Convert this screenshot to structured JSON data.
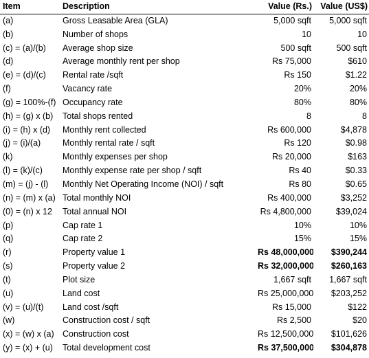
{
  "headers": {
    "item": "Item",
    "description": "Description",
    "value_rs": "Value (Rs.)",
    "value_usd": "Value (US$)"
  },
  "rows": [
    {
      "item": "(a)",
      "description": "Gross Leasable Area (GLA)",
      "rs": "5,000 sqft",
      "usd": "5,000 sqft",
      "bold": false
    },
    {
      "item": "(b)",
      "description": "Number of shops",
      "rs": "10",
      "usd": "10",
      "bold": false
    },
    {
      "item": "(c) = (a)/(b)",
      "description": "Average shop size",
      "rs": "500 sqft",
      "usd": "500 sqft",
      "bold": false
    },
    {
      "item": "(d)",
      "description": "Average monthly rent per shop",
      "rs": "Rs 75,000",
      "usd": "$610",
      "bold": false
    },
    {
      "item": "(e) = (d)/(c)",
      "description": "Rental rate /sqft",
      "rs": "Rs 150",
      "usd": "$1.22",
      "bold": false
    },
    {
      "item": "(f)",
      "description": "Vacancy rate",
      "rs": "20%",
      "usd": "20%",
      "bold": false
    },
    {
      "item": "(g) = 100%-(f)",
      "description": "Occupancy rate",
      "rs": "80%",
      "usd": "80%",
      "bold": false
    },
    {
      "item": "(h) = (g) x (b)",
      "description": "Total shops rented",
      "rs": "8",
      "usd": "8",
      "bold": false
    },
    {
      "item": "(i) = (h) x (d)",
      "description": "Monthly rent collected",
      "rs": "Rs 600,000",
      "usd": "$4,878",
      "bold": false
    },
    {
      "item": "(j) = (i)/(a)",
      "description": "Monthly rental rate / sqft",
      "rs": "Rs 120",
      "usd": "$0.98",
      "bold": false
    },
    {
      "item": "(k)",
      "description": "Monthly expenses per shop",
      "rs": "Rs 20,000",
      "usd": "$163",
      "bold": false
    },
    {
      "item": "(l) = (k)/(c)",
      "description": "Monthly expense rate per shop / sqft",
      "rs": "Rs 40",
      "usd": "$0.33",
      "bold": false
    },
    {
      "item": "(m) = (j) - (l)",
      "description": "Monthly Net Operating Income (NOI) / sqft",
      "rs": "Rs 80",
      "usd": "$0.65",
      "bold": false
    },
    {
      "item": "(n) = (m) x (a)",
      "description": "Total monthly NOI",
      "rs": "Rs 400,000",
      "usd": "$3,252",
      "bold": false
    },
    {
      "item": "(0) = (n) x 12",
      "description": "Total annual NOI",
      "rs": "Rs 4,800,000",
      "usd": "$39,024",
      "bold": false
    },
    {
      "item": "(p)",
      "description": "Cap rate 1",
      "rs": "10%",
      "usd": "10%",
      "bold": false
    },
    {
      "item": "(q)",
      "description": "Cap rate 2",
      "rs": "15%",
      "usd": "15%",
      "bold": false
    },
    {
      "item": "(r)",
      "description": "Property value 1",
      "rs": "Rs 48,000,000",
      "usd": "$390,244",
      "bold": true
    },
    {
      "item": "(s)",
      "description": "Property value 2",
      "rs": "Rs 32,000,000",
      "usd": "$260,163",
      "bold": true
    },
    {
      "item": "(t)",
      "description": "Plot size",
      "rs": "1,667 sqft",
      "usd": "1,667 sqft",
      "bold": false
    },
    {
      "item": "(u)",
      "description": "Land cost",
      "rs": "Rs 25,000,000",
      "usd": "$203,252",
      "bold": false
    },
    {
      "item": "(v) = (u)/(t)",
      "description": "Land cost /sqft",
      "rs": "Rs 15,000",
      "usd": "$122",
      "bold": false
    },
    {
      "item": "(w)",
      "description": "Construction cost / sqft",
      "rs": "Rs 2,500",
      "usd": "$20",
      "bold": false
    },
    {
      "item": "(x) = (w) x (a)",
      "description": "Construction cost",
      "rs": "Rs 12,500,000",
      "usd": "$101,626",
      "bold": false
    },
    {
      "item": "(y) = (x) + (u)",
      "description": "Total development cost",
      "rs": "Rs 37,500,000",
      "usd": "$304,878",
      "bold": true
    }
  ]
}
